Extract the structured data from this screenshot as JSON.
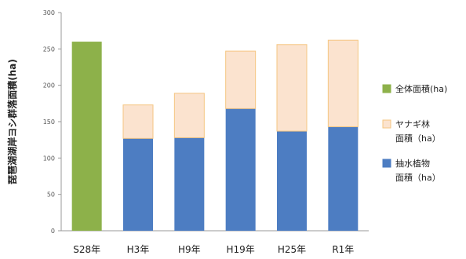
{
  "chart_data": {
    "type": "bar",
    "stacked": true,
    "ylabel": "琵琶湖湖岸ヨシ群落面積(ha)",
    "ylim": [
      0,
      300
    ],
    "yticks": [
      0,
      50,
      100,
      150,
      200,
      250,
      300
    ],
    "grid": false,
    "legend_position": "right",
    "categories": [
      "S28年",
      "H3年",
      "H9年",
      "H19年",
      "H25年",
      "R1年"
    ],
    "series": [
      {
        "name": "全体面積(ha)",
        "color": "#8db14a",
        "values": [
          260,
          null,
          null,
          null,
          null,
          null
        ]
      },
      {
        "name": "抽水植物面積（ha）",
        "color": "#4d7dc2",
        "values": [
          null,
          127,
          128,
          168,
          137,
          143
        ]
      },
      {
        "name": "ヤナギ林面積（ha）",
        "color": "#fbe3cf",
        "border": "#f5c682",
        "values": [
          null,
          46,
          61,
          79,
          119,
          119
        ]
      }
    ]
  },
  "legend": [
    {
      "lines": [
        "全体面積(ha)"
      ],
      "color": "#8db14a",
      "border": "#8db14a"
    },
    {
      "lines": [
        "ヤナギ林",
        "面積（ha）"
      ],
      "color": "#fbe3cf",
      "border": "#f5c682"
    },
    {
      "lines": [
        "抽水植物",
        "面積（ha）"
      ],
      "color": "#4d7dc2",
      "border": "#4d7dc2"
    }
  ]
}
